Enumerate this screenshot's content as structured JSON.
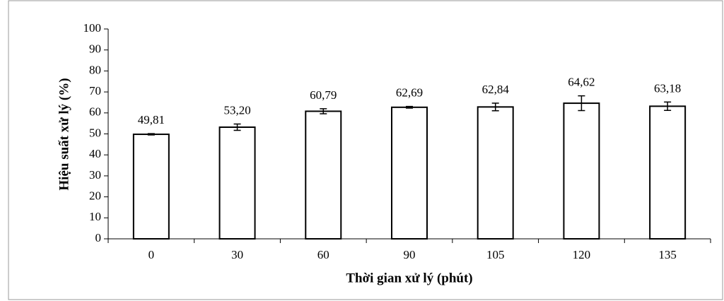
{
  "chart_data": {
    "type": "bar",
    "xlabel": "Thời gian xử lý (phút)",
    "ylabel": "Hiệu suất xử lý (%)",
    "categories": [
      "0",
      "30",
      "60",
      "90",
      "105",
      "120",
      "135"
    ],
    "values": [
      49.81,
      53.2,
      60.79,
      62.69,
      62.84,
      64.62,
      63.18
    ],
    "value_labels": [
      "49,81",
      "53,20",
      "60,79",
      "62,69",
      "62,84",
      "64,62",
      "63,18"
    ],
    "errors": [
      0.3,
      1.5,
      1.2,
      0.4,
      1.8,
      3.5,
      2.0
    ],
    "color": "#ffffff",
    "edgecolor": "#000000",
    "ylim": [
      0,
      100
    ],
    "yticks": [
      0,
      10,
      20,
      30,
      40,
      50,
      60,
      70,
      80,
      90,
      100
    ]
  }
}
